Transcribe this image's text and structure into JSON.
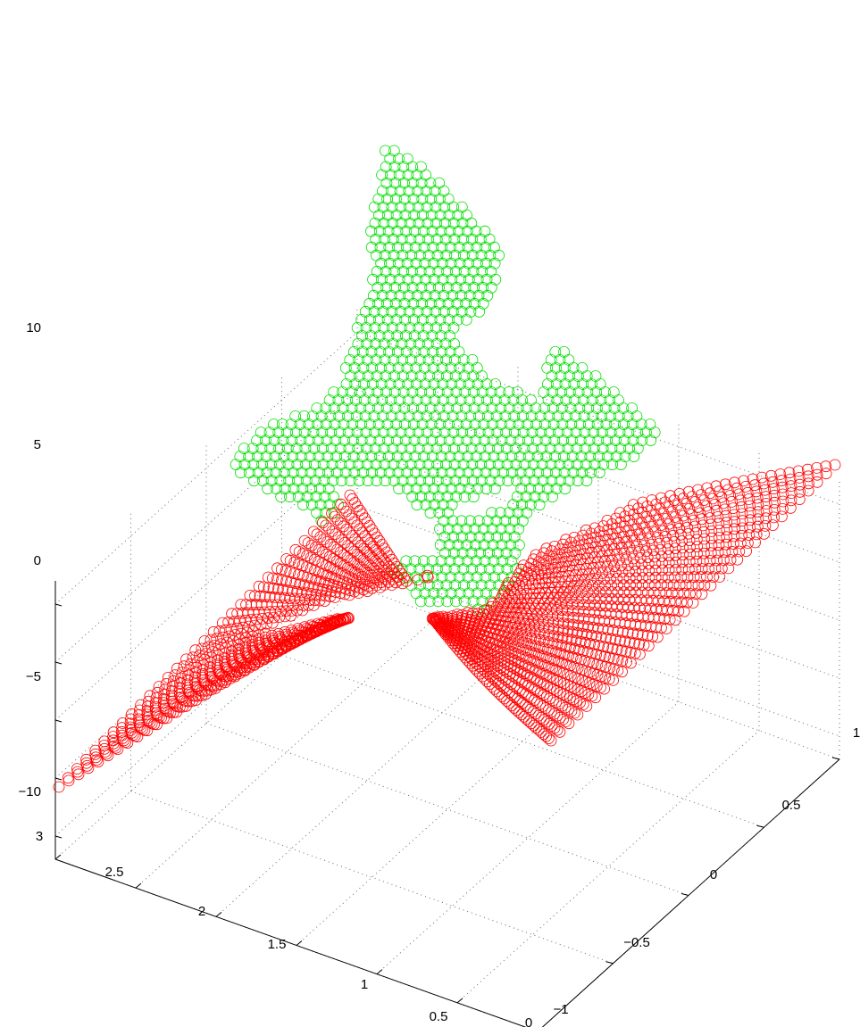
{
  "chart_data": {
    "type": "scatter3d",
    "marker": "o",
    "grid": true,
    "title": "",
    "xlabel": "",
    "ylabel": "",
    "zlabel": "",
    "xlim": [
      0,
      3
    ],
    "ylim": [
      -1,
      1
    ],
    "zlim": [
      -12,
      12
    ],
    "x_ticks": [
      "0",
      "0.5",
      "1",
      "1.5",
      "2",
      "2.5",
      "3"
    ],
    "y_ticks": [
      "−1",
      "−0.5",
      "0",
      "0.5",
      "1"
    ],
    "z_ticks": [
      "−10",
      "−5",
      "0",
      "5",
      "10"
    ],
    "series": [
      {
        "color": "#ff0000",
        "description_points": [
          [
            3.0,
            -1.0,
            -10
          ],
          [
            0.0,
            -1.0,
            0
          ],
          [
            3.0,
            1.0,
            0
          ],
          [
            0.0,
            1.0,
            10
          ]
        ]
      },
      {
        "color": "#00dd00",
        "description_points": [
          [
            1.0,
            -0.6,
            6
          ],
          [
            1.4,
            0.2,
            11
          ],
          [
            0.6,
            0.6,
            8
          ]
        ]
      }
    ]
  }
}
